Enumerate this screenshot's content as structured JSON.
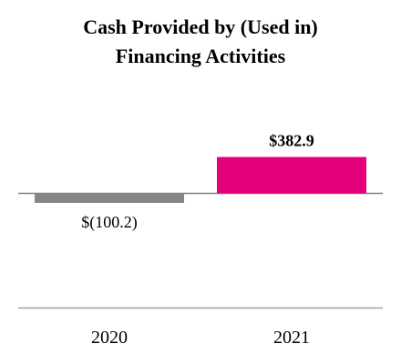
{
  "chart_data": {
    "type": "bar",
    "title_lines": [
      "Cash Provided by (Used in)",
      "Financing Activities"
    ],
    "categories": [
      "2020",
      "2021"
    ],
    "values": [
      -100.2,
      382.9
    ],
    "data_labels": [
      "$(100.2)",
      "$382.9"
    ],
    "data_label_bold": [
      false,
      true
    ],
    "colors": [
      "#868686",
      "#e4007c"
    ],
    "xlabel": "",
    "ylabel": "",
    "grid": false,
    "legend": "none"
  }
}
